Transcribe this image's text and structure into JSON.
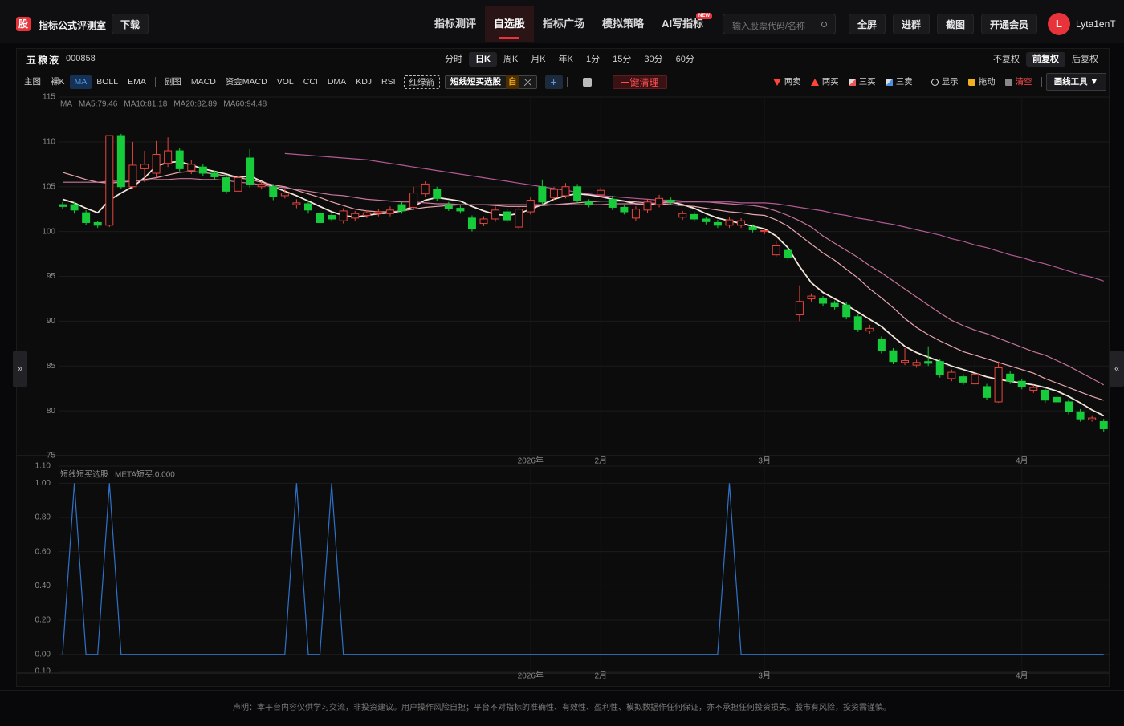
{
  "header": {
    "logo": "股",
    "title": "指标公式评测室",
    "download": "下载",
    "nav": [
      "指标测评",
      "自选股",
      "指标广场",
      "模拟策略",
      "AI写指标"
    ],
    "nav_active": 1,
    "badge": "NEW",
    "search_placeholder": "输入股票代码/名称",
    "buttons": [
      "全屏",
      "进群",
      "截图",
      "开通会员"
    ],
    "avatar": "L",
    "user": "Lyta1enT"
  },
  "stock": {
    "name": "五粮液",
    "code": "000858",
    "periods": [
      "分时",
      "日K",
      "周K",
      "月K",
      "年K",
      "1分",
      "15分",
      "30分",
      "60分"
    ],
    "period_active": 1,
    "adjust": [
      "不复权",
      "前复权",
      "后复权"
    ],
    "adjust_active": 1
  },
  "toolbar": {
    "main_label": "主图",
    "main_items": [
      "裸K",
      "MA",
      "BOLL",
      "EMA"
    ],
    "main_active": 1,
    "sub_label": "副图",
    "sub_items": [
      "MACD",
      "资金MACD",
      "VOL",
      "CCI",
      "DMA",
      "KDJ",
      "RSI"
    ],
    "arrow_tag": "红绿箭",
    "indicator_tag": "短线短买选股",
    "indicator_badge": "自",
    "add": "+",
    "clear_all": "一键清理",
    "tools": [
      "两卖",
      "两买",
      "三买",
      "三卖",
      "显示",
      "拖动",
      "清空"
    ],
    "draw_tools": "画线工具 ▼"
  },
  "side": {
    "left": "»",
    "right": "«"
  },
  "footer": "声明：本平台内容仅供学习交流，非投资建议。用户操作风险自担；平台不对指标的准确性、有效性、盈利性、模拟数据作任何保证，亦不承担任何投资损失。股市有风险，投资需谨慎。",
  "chart_data": [
    {
      "type": "candlestick",
      "legend_title": "MA",
      "up_color": "#e8453c",
      "down_color": "#16cc3a",
      "grid": true,
      "categories": [
        null,
        null,
        null,
        null,
        null,
        null,
        null,
        null,
        null,
        null,
        null,
        null,
        null,
        null,
        null,
        null,
        null,
        null,
        null,
        null,
        null,
        null,
        null,
        null,
        null,
        null,
        null,
        null,
        null,
        null,
        null,
        null,
        null,
        null,
        null,
        null,
        null,
        null,
        null,
        null,
        "2026年",
        null,
        null,
        null,
        null,
        null,
        "2月",
        null,
        null,
        null,
        null,
        null,
        null,
        null,
        null,
        null,
        null,
        null,
        null,
        null,
        "3月",
        null,
        null,
        null,
        null,
        null,
        null,
        null,
        null,
        null,
        null,
        null,
        null,
        null,
        null,
        null,
        null,
        null,
        null,
        null,
        null,
        null,
        "4月",
        null,
        null,
        null,
        null,
        null,
        null,
        null
      ],
      "open": [
        103.0,
        103.0,
        102.1,
        101.0,
        100.7,
        110.7,
        105.0,
        107.0,
        106.5,
        107.6,
        109.0,
        106.8,
        107.2,
        106.5,
        106.0,
        104.5,
        108.2,
        105.0,
        105.0,
        104.0,
        103.0,
        103.1,
        102.0,
        101.8,
        101.2,
        101.5,
        101.8,
        102.0,
        102.0,
        103.0,
        102.7,
        104.2,
        104.7,
        103.0,
        102.6,
        101.5,
        100.9,
        101.4,
        102.2,
        100.5,
        102.2,
        105.0,
        103.8,
        104.0,
        105.0,
        103.3,
        104.1,
        103.6,
        102.7,
        101.5,
        102.4,
        103.0,
        103.5,
        101.6,
        101.9,
        101.4,
        101.0,
        100.7,
        100.7,
        100.5,
        100.0,
        97.4,
        97.9,
        90.7,
        92.5,
        92.5,
        92.0,
        91.8,
        90.5,
        88.9,
        88.0,
        86.7,
        85.4,
        85.1,
        85.5,
        85.5,
        83.6,
        83.8,
        83.0,
        82.7,
        81.0,
        84.1,
        83.3,
        82.3,
        82.3,
        81.5,
        81.0,
        79.9,
        79.0,
        78.8
      ],
      "high": [
        103.3,
        103.3,
        102.4,
        101.2,
        110.7,
        110.9,
        110.0,
        109.0,
        110.1,
        110.5,
        109.3,
        108.0,
        107.5,
        106.8,
        106.3,
        106.4,
        109.2,
        105.6,
        105.3,
        104.8,
        103.6,
        103.5,
        102.3,
        102.1,
        102.6,
        102.3,
        102.4,
        102.5,
        102.8,
        103.3,
        105.0,
        105.6,
        105.0,
        103.3,
        102.9,
        101.8,
        101.7,
        102.8,
        102.5,
        102.8,
        103.9,
        105.8,
        105.0,
        105.4,
        105.3,
        103.6,
        104.9,
        104.0,
        103.0,
        102.8,
        103.6,
        104.1,
        103.8,
        102.3,
        102.2,
        101.6,
        101.3,
        101.6,
        101.5,
        100.8,
        100.4,
        99.0,
        98.2,
        94.0,
        93.1,
        92.8,
        92.3,
        92.1,
        90.8,
        89.6,
        88.3,
        87.0,
        87.0,
        85.7,
        87.2,
        85.8,
        84.6,
        84.1,
        86.0,
        83.0,
        85.5,
        84.4,
        83.6,
        82.9,
        82.6,
        81.8,
        81.3,
        80.2,
        79.5,
        79.1
      ],
      "low": [
        102.5,
        102.0,
        100.7,
        100.4,
        100.5,
        104.8,
        104.8,
        105.5,
        106.0,
        107.2,
        106.7,
        106.4,
        106.2,
        105.8,
        104.2,
        104.2,
        104.9,
        104.7,
        103.5,
        103.7,
        102.6,
        102.0,
        100.7,
        101.1,
        100.9,
        101.2,
        101.5,
        101.7,
        101.7,
        102.0,
        102.4,
        103.9,
        103.4,
        102.3,
        102.0,
        100.0,
        100.6,
        101.1,
        101.0,
        100.2,
        101.9,
        103.0,
        103.5,
        103.7,
        103.2,
        102.7,
        103.8,
        102.4,
        101.9,
        101.2,
        102.1,
        102.7,
        103.0,
        101.3,
        101.1,
        100.8,
        100.4,
        100.4,
        100.4,
        99.9,
        99.7,
        97.2,
        96.8,
        90.0,
        92.2,
        91.7,
        91.3,
        90.2,
        88.8,
        88.6,
        86.4,
        85.2,
        85.1,
        84.8,
        85.0,
        83.7,
        83.3,
        82.9,
        82.7,
        81.2,
        80.9,
        83.0,
        82.4,
        82.0,
        80.9,
        80.7,
        79.6,
        78.8,
        78.8,
        77.7
      ],
      "close": [
        102.8,
        102.4,
        101.0,
        100.7,
        110.7,
        105.0,
        107.4,
        107.5,
        108.6,
        109.0,
        107.0,
        107.5,
        106.5,
        106.1,
        104.5,
        106.0,
        105.2,
        105.3,
        103.9,
        104.3,
        103.2,
        102.4,
        101.0,
        101.4,
        102.3,
        102.0,
        102.1,
        102.2,
        102.4,
        102.3,
        104.3,
        105.3,
        103.7,
        102.6,
        102.3,
        100.3,
        101.4,
        102.4,
        101.3,
        102.5,
        103.5,
        103.3,
        104.7,
        105.0,
        103.5,
        103.0,
        104.6,
        102.7,
        102.2,
        102.5,
        103.3,
        103.7,
        103.3,
        102.0,
        101.4,
        101.1,
        100.7,
        101.3,
        101.2,
        100.2,
        100.1,
        98.4,
        97.1,
        92.2,
        92.8,
        92.0,
        91.6,
        90.5,
        89.1,
        89.2,
        86.7,
        85.5,
        85.6,
        85.4,
        85.3,
        84.0,
        84.3,
        83.2,
        84.1,
        81.5,
        84.8,
        83.3,
        82.7,
        82.6,
        81.2,
        81.0,
        79.9,
        79.1,
        79.2,
        78.0
      ],
      "series": [
        {
          "name": "MA5:79.46",
          "color": "#f3e6da",
          "values": [
            103.6,
            103.2,
            102.6,
            102.1,
            103.5,
            104.3,
            105.0,
            106.0,
            107.3,
            107.7,
            107.8,
            107.4,
            107.0,
            106.7,
            106.4,
            106.0,
            106.2,
            105.6,
            105.0,
            104.5,
            104.0,
            103.4,
            102.8,
            102.2,
            101.8,
            101.6,
            101.8,
            102.0,
            102.1,
            102.3,
            102.8,
            103.5,
            103.8,
            103.6,
            103.4,
            102.8,
            102.3,
            101.9,
            101.8,
            102.0,
            102.5,
            103.0,
            103.6,
            104.0,
            104.2,
            104.1,
            103.9,
            103.6,
            103.4,
            103.1,
            103.0,
            103.2,
            103.3,
            103.0,
            102.6,
            102.0,
            101.5,
            101.2,
            100.9,
            100.6,
            100.3,
            99.5,
            98.2,
            96.1,
            94.3,
            93.2,
            92.5,
            91.8,
            91.0,
            90.2,
            89.4,
            88.3,
            87.2,
            86.5,
            86.0,
            85.5,
            85.0,
            84.6,
            84.2,
            83.8,
            83.5,
            83.3,
            83.1,
            82.9,
            82.6,
            82.2,
            81.6,
            80.9,
            80.1,
            79.46
          ]
        },
        {
          "name": "MA10:81.18",
          "color": "#e9a8ae",
          "values": [
            106.6,
            106.2,
            105.8,
            105.5,
            105.4,
            105.5,
            105.6,
            105.8,
            106.0,
            106.3,
            106.6,
            106.7,
            106.6,
            106.4,
            106.2,
            106.0,
            105.8,
            105.5,
            105.2,
            105.0,
            104.6,
            104.2,
            103.8,
            103.3,
            102.9,
            102.5,
            102.3,
            102.2,
            102.2,
            102.3,
            102.5,
            102.7,
            102.8,
            102.9,
            103.0,
            103.0,
            103.0,
            102.9,
            102.8,
            102.8,
            102.8,
            102.9,
            103.0,
            103.1,
            103.2,
            103.3,
            103.4,
            103.4,
            103.4,
            103.3,
            103.2,
            103.1,
            103.0,
            102.9,
            102.8,
            102.6,
            102.4,
            102.2,
            102.1,
            101.9,
            101.8,
            101.3,
            100.6,
            99.6,
            98.6,
            97.6,
            96.8,
            95.8,
            94.8,
            93.6,
            92.6,
            91.5,
            90.3,
            89.3,
            88.5,
            87.8,
            87.2,
            86.6,
            86.2,
            85.8,
            85.4,
            85.0,
            84.6,
            84.2,
            83.6,
            83.1,
            82.6,
            82.1,
            81.6,
            81.18
          ]
        },
        {
          "name": "MA20:82.89",
          "color": "#c7759a",
          "values": [
            105.5,
            105.5,
            105.5,
            105.5,
            105.6,
            105.6,
            105.6,
            105.7,
            105.8,
            105.8,
            105.9,
            105.9,
            105.8,
            105.8,
            105.7,
            105.5,
            105.4,
            105.2,
            105.0,
            104.9,
            104.7,
            104.5,
            104.3,
            104.1,
            104.0,
            103.8,
            103.6,
            103.5,
            103.4,
            103.3,
            103.3,
            103.2,
            103.1,
            103.1,
            103.0,
            103.0,
            103.0,
            103.0,
            103.0,
            103.0,
            103.0,
            103.0,
            103.0,
            103.0,
            103.0,
            103.0,
            103.0,
            103.1,
            103.1,
            103.1,
            103.1,
            103.2,
            103.2,
            103.3,
            103.3,
            103.3,
            103.2,
            103.1,
            103.0,
            102.9,
            102.7,
            102.3,
            101.8,
            101.2,
            100.5,
            99.5,
            98.7,
            97.9,
            97.1,
            96.2,
            95.4,
            94.5,
            93.6,
            92.7,
            91.8,
            90.9,
            90.1,
            89.5,
            89.0,
            88.6,
            88.1,
            87.6,
            87.1,
            86.6,
            86.2,
            85.6,
            85.0,
            84.3,
            83.6,
            82.89
          ]
        },
        {
          "name": "MA60:94.48",
          "color": "#b25a95",
          "values": [
            null,
            null,
            null,
            null,
            null,
            null,
            null,
            null,
            null,
            null,
            null,
            null,
            null,
            null,
            null,
            null,
            null,
            null,
            null,
            108.7,
            108.6,
            108.5,
            108.4,
            108.3,
            108.2,
            108.1,
            108.0,
            107.8,
            107.6,
            107.4,
            107.2,
            107.0,
            106.8,
            106.6,
            106.4,
            106.2,
            106.0,
            105.8,
            105.6,
            105.4,
            105.2,
            105.0,
            104.8,
            104.6,
            104.4,
            104.2,
            104.0,
            103.9,
            103.8,
            103.7,
            103.6,
            103.5,
            103.5,
            103.4,
            103.4,
            103.3,
            103.3,
            103.3,
            103.2,
            103.2,
            103.2,
            103.1,
            102.9,
            102.7,
            102.5,
            102.3,
            102.0,
            101.8,
            101.5,
            101.3,
            101.0,
            100.8,
            100.5,
            100.2,
            99.9,
            99.6,
            99.2,
            98.9,
            98.5,
            98.2,
            97.8,
            97.4,
            97.1,
            96.7,
            96.4,
            96.0,
            95.6,
            95.2,
            94.9,
            94.48
          ]
        }
      ],
      "ylim": [
        75,
        115
      ],
      "yticks": [
        75,
        80,
        85,
        90,
        95,
        100,
        105,
        110,
        115
      ]
    },
    {
      "type": "line",
      "legend_title": "短线短买选股",
      "grid": true,
      "categories": [
        null,
        null,
        null,
        null,
        null,
        null,
        null,
        null,
        null,
        null,
        null,
        null,
        null,
        null,
        null,
        null,
        null,
        null,
        null,
        null,
        null,
        null,
        null,
        null,
        null,
        null,
        null,
        null,
        null,
        null,
        null,
        null,
        null,
        null,
        null,
        null,
        null,
        null,
        null,
        null,
        "2026年",
        null,
        null,
        null,
        null,
        null,
        "2月",
        null,
        null,
        null,
        null,
        null,
        null,
        null,
        null,
        null,
        null,
        null,
        null,
        null,
        "3月",
        null,
        null,
        null,
        null,
        null,
        null,
        null,
        null,
        null,
        null,
        null,
        null,
        null,
        null,
        null,
        null,
        null,
        null,
        null,
        null,
        null,
        "4月",
        null,
        null,
        null,
        null,
        null,
        null,
        null
      ],
      "series": [
        {
          "name": "META短买:0.000",
          "color": "#2f72c8",
          "values": [
            0,
            1,
            0,
            0,
            1,
            0,
            0,
            0,
            0,
            0,
            0,
            0,
            0,
            0,
            0,
            0,
            0,
            0,
            0,
            0,
            1,
            0,
            0,
            1,
            0,
            0,
            0,
            0,
            0,
            0,
            0,
            0,
            0,
            0,
            0,
            0,
            0,
            0,
            0,
            0,
            0,
            0,
            0,
            0,
            0,
            0,
            0,
            0,
            0,
            0,
            0,
            0,
            0,
            0,
            0,
            0,
            0,
            1,
            0,
            0,
            0,
            0,
            0,
            0,
            0,
            0,
            0,
            0,
            0,
            0,
            0,
            0,
            0,
            0,
            0,
            0,
            0,
            0,
            0,
            0,
            0,
            0,
            0,
            0,
            0,
            0,
            0,
            0,
            0,
            0
          ]
        }
      ],
      "ylim": [
        -0.1,
        1.1
      ],
      "yticks": [
        {
          "value": -0.1,
          "label": "-0.10"
        },
        {
          "value": 0,
          "label": "0.00"
        },
        {
          "value": 0.2,
          "label": "0.20"
        },
        {
          "value": 0.4,
          "label": "0.40"
        },
        {
          "value": 0.6,
          "label": "0.60"
        },
        {
          "value": 0.8,
          "label": "0.80"
        },
        {
          "value": 1,
          "label": "1.00"
        },
        {
          "value": 1.1,
          "label": "1.10"
        }
      ]
    }
  ]
}
